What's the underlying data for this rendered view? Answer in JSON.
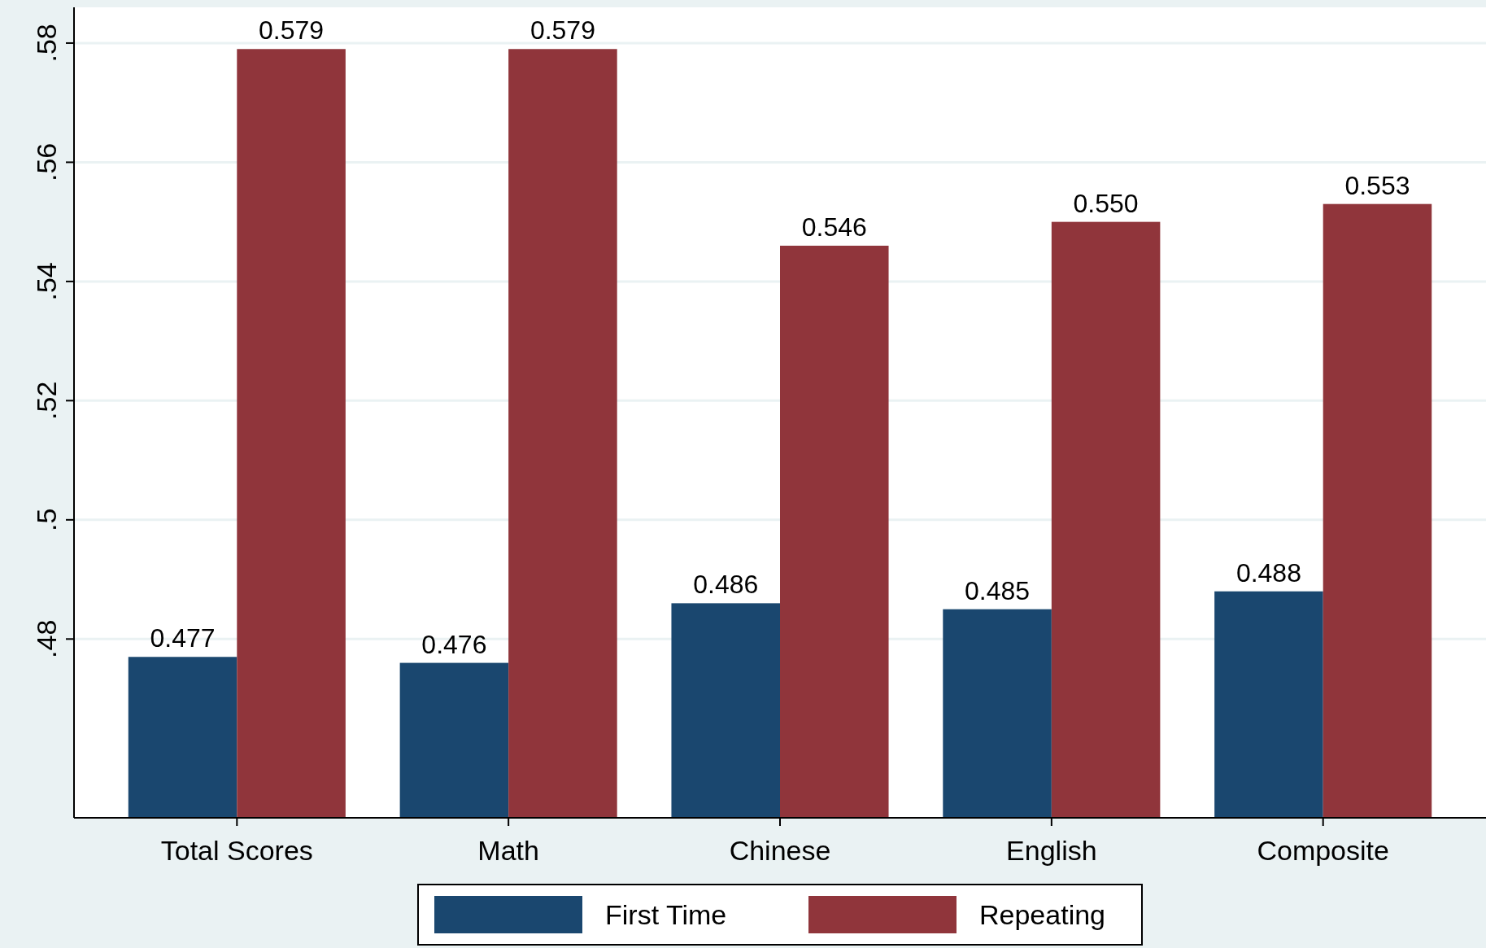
{
  "chart_data": {
    "type": "bar",
    "categories": [
      "Total Scores",
      "Math",
      "Chinese",
      "English",
      "Composite"
    ],
    "series": [
      {
        "name": "First Time",
        "color": "#1a476f",
        "values": [
          0.477,
          0.476,
          0.486,
          0.485,
          0.488
        ],
        "value_labels": [
          "0.477",
          "0.476",
          "0.486",
          "0.485",
          "0.488"
        ]
      },
      {
        "name": "Repeating",
        "color": "#90353b",
        "values": [
          0.579,
          0.579,
          0.546,
          0.55,
          0.553
        ],
        "value_labels": [
          "0.579",
          "0.579",
          "0.546",
          "0.550",
          "0.553"
        ]
      }
    ],
    "ylim": [
      0.45,
      0.586
    ],
    "yticks": [
      {
        "value": 0.48,
        "label": ".48"
      },
      {
        "value": 0.5,
        "label": ".5"
      },
      {
        "value": 0.52,
        "label": ".52"
      },
      {
        "value": 0.54,
        "label": ".54"
      },
      {
        "value": 0.56,
        "label": ".56"
      },
      {
        "value": 0.58,
        "label": ".58"
      }
    ],
    "grid": "y",
    "legend": "bottom"
  }
}
